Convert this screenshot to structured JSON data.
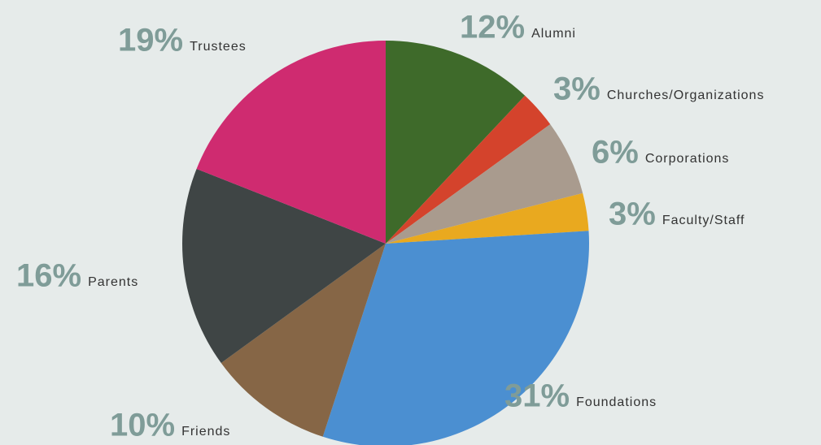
{
  "chart_data": {
    "type": "pie",
    "categories": [
      "Alumni",
      "Churches/Organizations",
      "Corporations",
      "Faculty/Staff",
      "Foundations",
      "Friends",
      "Parents",
      "Trustees"
    ],
    "values": [
      12,
      3,
      6,
      3,
      31,
      10,
      16,
      19
    ],
    "value_labels": [
      "12%",
      "3%",
      "6%",
      "3%",
      "31%",
      "10%",
      "16%",
      "19%"
    ],
    "colors": [
      "#3e6a2a",
      "#d4432c",
      "#a99b8e",
      "#e9a91f",
      "#4b8fd1",
      "#866646",
      "#3f4545",
      "#cf2b70"
    ]
  }
}
